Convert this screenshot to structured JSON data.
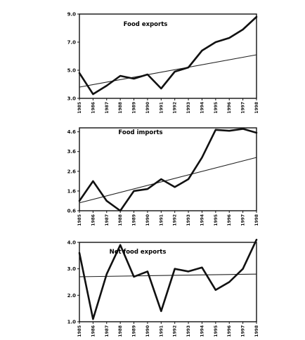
{
  "chart_data": [
    {
      "type": "line",
      "title": "Food exports",
      "x": [
        "1985",
        "1986",
        "1987",
        "1988",
        "1989",
        "1990",
        "1991",
        "1992",
        "1993",
        "1994",
        "1995",
        "1996",
        "1997",
        "1998"
      ],
      "ylim": [
        3.0,
        9.0
      ],
      "yticks": [
        "3.0",
        "5.0",
        "7.0",
        "9.0"
      ],
      "series": [
        {
          "values": [
            4.8,
            3.3,
            3.9,
            4.6,
            4.4,
            4.7,
            3.7,
            4.9,
            5.2,
            6.4,
            7.0,
            7.3,
            7.9,
            8.8
          ]
        }
      ],
      "trend": [
        3.8,
        6.1
      ]
    },
    {
      "type": "line",
      "title": "Food imports",
      "x": [
        "1985",
        "1986",
        "1987",
        "1988",
        "1989",
        "1990",
        "1991",
        "1992",
        "1993",
        "1994",
        "1995",
        "1996",
        "1997",
        "1998"
      ],
      "ylim": [
        0.6,
        4.8
      ],
      "yticks": [
        "0.6",
        "1.6",
        "2.6",
        "3.6",
        "4.6"
      ],
      "series": [
        {
          "values": [
            1.1,
            2.1,
            1.1,
            0.6,
            1.6,
            1.7,
            2.2,
            1.8,
            2.2,
            3.3,
            4.7,
            4.65,
            4.75,
            4.55
          ]
        }
      ],
      "trend": [
        1.0,
        3.3
      ]
    },
    {
      "type": "line",
      "title": "Net food exports",
      "x": [
        "1985",
        "1986",
        "1987",
        "1988",
        "1989",
        "1990",
        "1991",
        "1992",
        "1993",
        "1994",
        "1995",
        "1996",
        "1997",
        "1998"
      ],
      "ylim": [
        1.0,
        4.0
      ],
      "yticks": [
        "1.0",
        "2.0",
        "3.0",
        "4.0"
      ],
      "series": [
        {
          "values": [
            3.6,
            1.1,
            2.8,
            3.9,
            2.7,
            2.9,
            1.4,
            3.0,
            2.9,
            3.05,
            2.2,
            2.5,
            3.0,
            4.1
          ]
        }
      ],
      "trend": [
        2.7,
        2.8
      ]
    }
  ]
}
